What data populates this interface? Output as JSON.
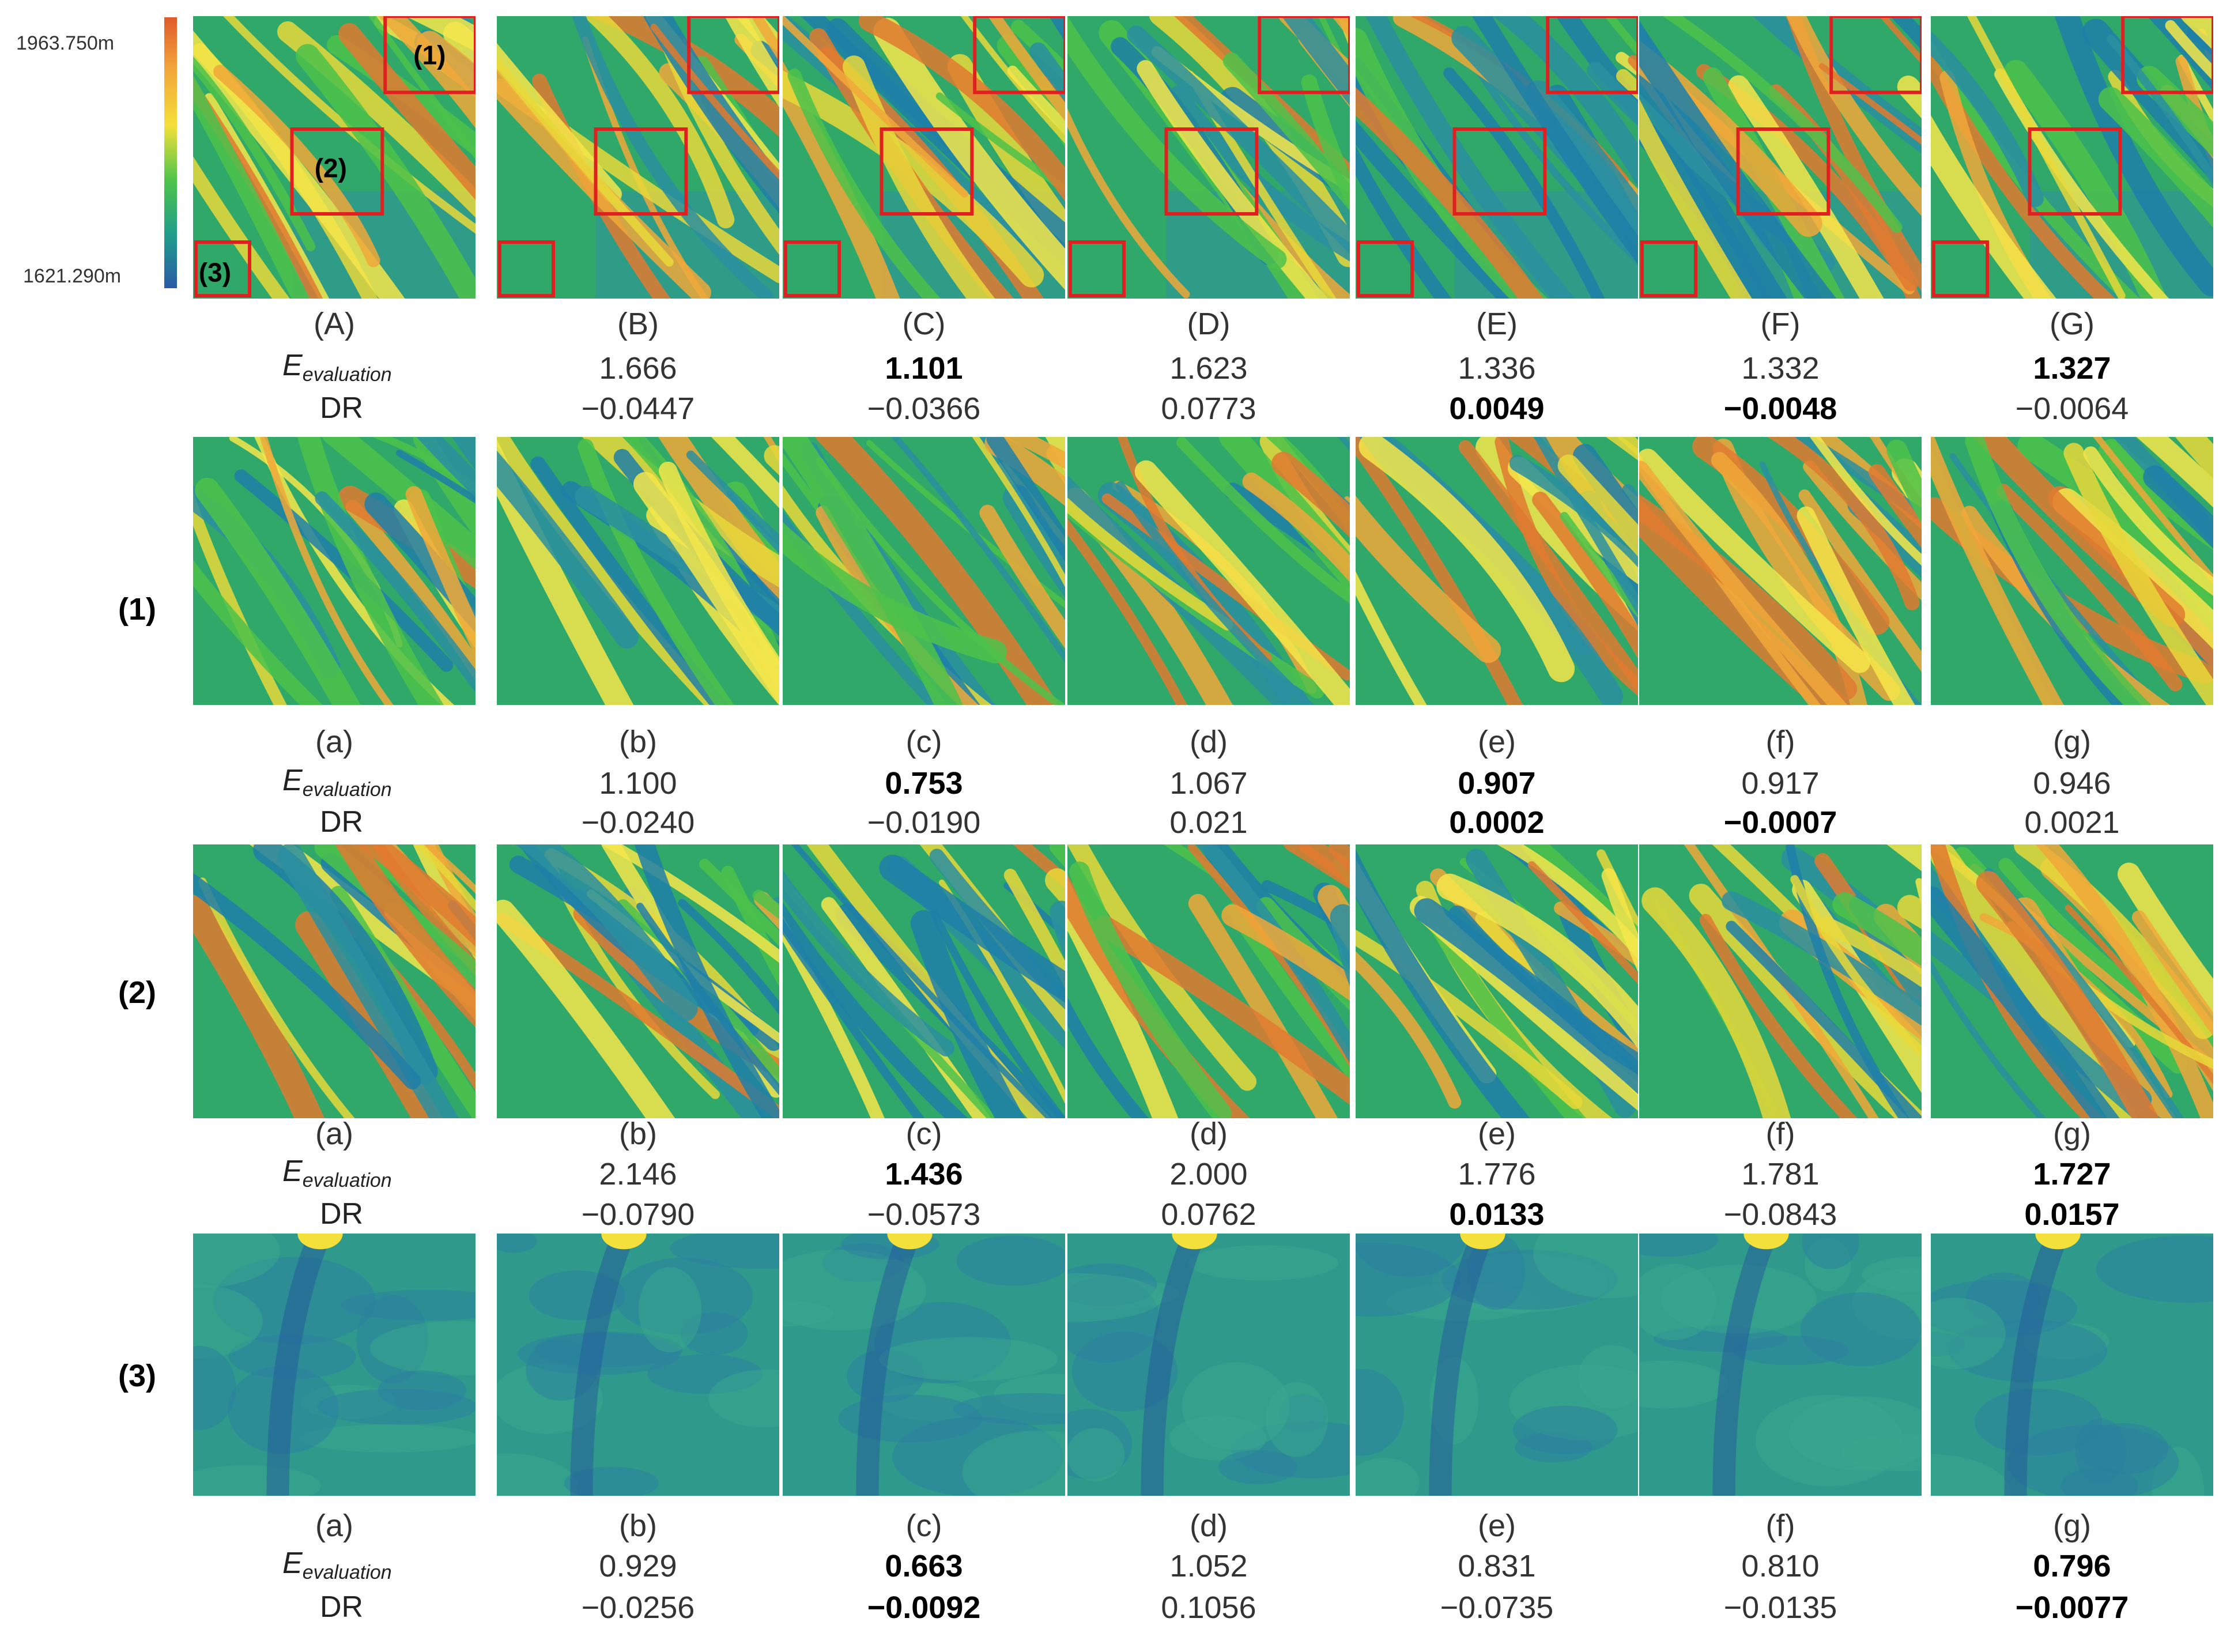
{
  "colorbar": {
    "max_label": "1963.750m",
    "min_label": "1621.290m",
    "colors": [
      "#e05a2a",
      "#f2a23a",
      "#f4e03a",
      "#4fc44a",
      "#1f9e8a",
      "#2a5aa8"
    ]
  },
  "overview_box_labels": [
    "(1)",
    "(2)",
    "(3)"
  ],
  "metric_names": {
    "e_main": "E",
    "e_sub": "evaluation",
    "dr": "DR"
  },
  "rows": [
    {
      "id": "overview",
      "row_label": "",
      "captions": [
        "(A)",
        "(B)",
        "(C)",
        "(D)",
        "(E)",
        "(F)",
        "(G)"
      ],
      "e_values": [
        "",
        "1.666",
        "1.101",
        "1.623",
        "1.336",
        "1.332",
        "1.327"
      ],
      "e_bold": [
        false,
        false,
        true,
        false,
        false,
        false,
        true
      ],
      "dr_values": [
        "",
        "−0.0447",
        "−0.0366",
        "0.0773",
        "0.0049",
        "−0.0048",
        "−0.0064"
      ],
      "dr_bold": [
        false,
        false,
        false,
        false,
        true,
        true,
        false
      ]
    },
    {
      "id": "region-1",
      "row_label": "(1)",
      "captions": [
        "(a)",
        "(b)",
        "(c)",
        "(d)",
        "(e)",
        "(f)",
        "(g)"
      ],
      "e_values": [
        "",
        "1.100",
        "0.753",
        "1.067",
        "0.907",
        "0.917",
        "0.946"
      ],
      "e_bold": [
        false,
        false,
        true,
        false,
        true,
        false,
        false
      ],
      "dr_values": [
        "",
        "−0.0240",
        "−0.0190",
        "0.021",
        "0.0002",
        "−0.0007",
        "0.0021"
      ],
      "dr_bold": [
        false,
        false,
        false,
        false,
        true,
        true,
        false
      ]
    },
    {
      "id": "region-2",
      "row_label": "(2)",
      "captions": [
        "(a)",
        "(b)",
        "(c)",
        "(d)",
        "(e)",
        "(f)",
        "(g)"
      ],
      "e_values": [
        "",
        "2.146",
        "1.436",
        "2.000",
        "1.776",
        "1.781",
        "1.727"
      ],
      "e_bold": [
        false,
        false,
        true,
        false,
        false,
        false,
        true
      ],
      "dr_values": [
        "",
        "−0.0790",
        "−0.0573",
        "0.0762",
        "0.0133",
        "−0.0843",
        "0.0157"
      ],
      "dr_bold": [
        false,
        false,
        false,
        false,
        true,
        false,
        true
      ]
    },
    {
      "id": "region-3",
      "row_label": "(3)",
      "captions": [
        "(a)",
        "(b)",
        "(c)",
        "(d)",
        "(e)",
        "(f)",
        "(g)"
      ],
      "e_values": [
        "",
        "0.929",
        "0.663",
        "1.052",
        "0.831",
        "0.810",
        "0.796"
      ],
      "e_bold": [
        false,
        false,
        true,
        false,
        false,
        false,
        true
      ],
      "dr_values": [
        "",
        "−0.0256",
        "−0.0092",
        "0.1056",
        "−0.0735",
        "−0.0135",
        "−0.0077"
      ],
      "dr_bold": [
        false,
        false,
        true,
        false,
        false,
        false,
        true
      ]
    }
  ]
}
